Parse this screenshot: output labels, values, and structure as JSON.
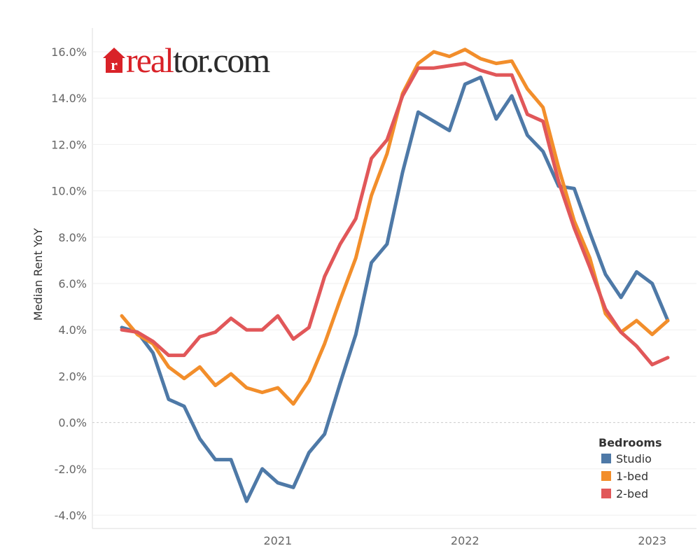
{
  "logo": {
    "part_red": "real",
    "part_dark": "tor.com",
    "icon": "house-r-icon",
    "colors": {
      "red": "#d92228",
      "dark": "#2b2b2b"
    }
  },
  "chart_data": {
    "type": "line",
    "title": "",
    "xlabel": "",
    "ylabel": "Median Rent YoY",
    "ylim": [
      -4.0,
      16.0
    ],
    "y_ticks": [
      "-4.0%",
      "-2.0%",
      "0.0%",
      "2.0%",
      "4.0%",
      "6.0%",
      "8.0%",
      "10.0%",
      "12.0%",
      "14.0%",
      "16.0%"
    ],
    "y_tick_values": [
      -4,
      -2,
      0,
      2,
      4,
      6,
      8,
      10,
      12,
      14,
      16
    ],
    "x": [
      "2020-03",
      "2020-04",
      "2020-05",
      "2020-06",
      "2020-07",
      "2020-08",
      "2020-09",
      "2020-10",
      "2020-11",
      "2020-12",
      "2021-01",
      "2021-02",
      "2021-03",
      "2021-04",
      "2021-05",
      "2021-06",
      "2021-07",
      "2021-08",
      "2021-09",
      "2021-10",
      "2021-11",
      "2021-12",
      "2022-01",
      "2022-02",
      "2022-03",
      "2022-04",
      "2022-05",
      "2022-06",
      "2022-07",
      "2022-08",
      "2022-09",
      "2022-10",
      "2022-11",
      "2022-12",
      "2023-01",
      "2023-02"
    ],
    "x_ticks": [
      "2021",
      "2022",
      "2023"
    ],
    "x_tick_values": [
      "2021-01",
      "2022-01",
      "2023-01"
    ],
    "zero_line": true,
    "grid": true,
    "legend": {
      "title": "Bedrooms",
      "position": "bottom-right"
    },
    "series": [
      {
        "name": "Studio",
        "color": "#4e79a7",
        "values": [
          4.1,
          3.9,
          3.0,
          1.0,
          0.7,
          -0.7,
          -1.6,
          -1.6,
          -3.4,
          -2.0,
          -2.6,
          -2.8,
          -1.3,
          -0.5,
          1.7,
          3.8,
          6.9,
          7.7,
          10.8,
          13.4,
          13.0,
          12.6,
          14.6,
          14.9,
          13.1,
          14.1,
          12.4,
          11.7,
          10.2,
          10.1,
          8.2,
          6.4,
          5.4,
          6.5,
          6.0,
          4.4
        ]
      },
      {
        "name": "1-bed",
        "color": "#f28e2b",
        "values": [
          4.6,
          3.8,
          3.4,
          2.4,
          1.9,
          2.4,
          1.6,
          2.1,
          1.5,
          1.3,
          1.5,
          0.8,
          1.8,
          3.4,
          5.3,
          7.1,
          9.8,
          11.6,
          14.2,
          15.5,
          16.0,
          15.8,
          16.1,
          15.7,
          15.5,
          15.6,
          14.4,
          13.6,
          11.0,
          8.7,
          7.1,
          4.7,
          3.9,
          4.4,
          3.8,
          4.4
        ]
      },
      {
        "name": "2-bed",
        "color": "#e15759",
        "values": [
          4.0,
          3.9,
          3.5,
          2.9,
          2.9,
          3.7,
          3.9,
          4.5,
          4.0,
          4.0,
          4.6,
          3.6,
          4.1,
          6.3,
          7.7,
          8.8,
          11.4,
          12.2,
          14.1,
          15.3,
          15.3,
          15.4,
          15.5,
          15.2,
          15.0,
          15.0,
          13.3,
          13.0,
          10.4,
          8.4,
          6.7,
          4.9,
          3.9,
          3.3,
          2.5,
          2.8
        ]
      }
    ]
  }
}
